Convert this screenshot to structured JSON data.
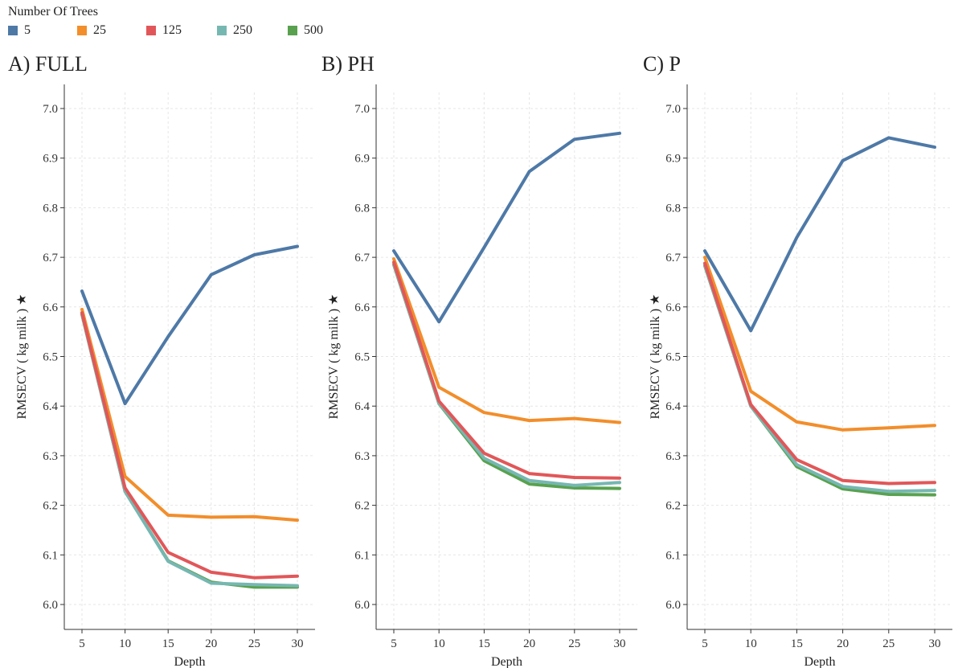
{
  "legend": {
    "title": "Number Of Trees",
    "items": [
      {
        "label": "5",
        "color": "#4e79a7"
      },
      {
        "label": "25",
        "color": "#f28e2b"
      },
      {
        "label": "125",
        "color": "#e15759"
      },
      {
        "label": "250",
        "color": "#76b7b2"
      },
      {
        "label": "500",
        "color": "#59a14f"
      }
    ]
  },
  "chart_data": [
    {
      "type": "line",
      "title": "A) FULL",
      "xlabel": "Depth",
      "ylabel": "RMSECV ( kg milk ) ★",
      "x": [
        5,
        10,
        15,
        20,
        25,
        30
      ],
      "ylim": [
        6.0,
        7.0
      ],
      "yticks": [
        "6.0",
        "6.1",
        "6.2",
        "6.3",
        "6.4",
        "6.5",
        "6.6",
        "6.7",
        "6.8",
        "6.9",
        "7.0"
      ],
      "grid": true,
      "series": [
        {
          "name": "5",
          "color": "#4e79a7",
          "values": [
            6.632,
            6.405,
            6.54,
            6.665,
            6.705,
            6.722
          ]
        },
        {
          "name": "25",
          "color": "#f28e2b",
          "values": [
            6.595,
            6.258,
            6.18,
            6.176,
            6.177,
            6.17
          ]
        },
        {
          "name": "500",
          "color": "#59a14f",
          "values": [
            6.585,
            6.228,
            6.088,
            6.045,
            6.035,
            6.035
          ]
        },
        {
          "name": "250",
          "color": "#76b7b2",
          "values": [
            6.586,
            6.228,
            6.087,
            6.043,
            6.04,
            6.038
          ]
        },
        {
          "name": "125",
          "color": "#e15759",
          "values": [
            6.588,
            6.235,
            6.105,
            6.065,
            6.054,
            6.057
          ]
        }
      ]
    },
    {
      "type": "line",
      "title": "B) PH",
      "xlabel": "Depth",
      "ylabel": "RMSECV ( kg milk ) ★",
      "x": [
        5,
        10,
        15,
        20,
        25,
        30
      ],
      "ylim": [
        6.0,
        7.0
      ],
      "yticks": [
        "6.0",
        "6.1",
        "6.2",
        "6.3",
        "6.4",
        "6.5",
        "6.6",
        "6.7",
        "6.8",
        "6.9",
        "7.0"
      ],
      "grid": true,
      "series": [
        {
          "name": "5",
          "color": "#4e79a7",
          "values": [
            6.713,
            6.57,
            6.72,
            6.873,
            6.938,
            6.95
          ]
        },
        {
          "name": "25",
          "color": "#f28e2b",
          "values": [
            6.697,
            6.438,
            6.387,
            6.371,
            6.375,
            6.367
          ]
        },
        {
          "name": "500",
          "color": "#59a14f",
          "values": [
            6.685,
            6.405,
            6.29,
            6.243,
            6.235,
            6.234
          ]
        },
        {
          "name": "250",
          "color": "#76b7b2",
          "values": [
            6.686,
            6.406,
            6.295,
            6.25,
            6.24,
            6.246
          ]
        },
        {
          "name": "125",
          "color": "#e15759",
          "values": [
            6.69,
            6.41,
            6.305,
            6.264,
            6.256,
            6.255
          ]
        }
      ]
    },
    {
      "type": "line",
      "title": "C) P",
      "xlabel": "Depth",
      "ylabel": "RMSECV ( kg milk ) ★",
      "x": [
        5,
        10,
        15,
        20,
        25,
        30
      ],
      "ylim": [
        6.0,
        7.0
      ],
      "yticks": [
        "6.0",
        "6.1",
        "6.2",
        "6.3",
        "6.4",
        "6.5",
        "6.6",
        "6.7",
        "6.8",
        "6.9",
        "7.0"
      ],
      "grid": true,
      "series": [
        {
          "name": "5",
          "color": "#4e79a7",
          "values": [
            6.713,
            6.552,
            6.74,
            6.895,
            6.941,
            6.922
          ]
        },
        {
          "name": "25",
          "color": "#f28e2b",
          "values": [
            6.7,
            6.43,
            6.368,
            6.352,
            6.356,
            6.361
          ]
        },
        {
          "name": "500",
          "color": "#59a14f",
          "values": [
            6.683,
            6.4,
            6.278,
            6.233,
            6.222,
            6.221
          ]
        },
        {
          "name": "250",
          "color": "#76b7b2",
          "values": [
            6.684,
            6.4,
            6.282,
            6.238,
            6.228,
            6.23
          ]
        },
        {
          "name": "125",
          "color": "#e15759",
          "values": [
            6.688,
            6.403,
            6.292,
            6.25,
            6.244,
            6.246
          ]
        }
      ]
    }
  ]
}
